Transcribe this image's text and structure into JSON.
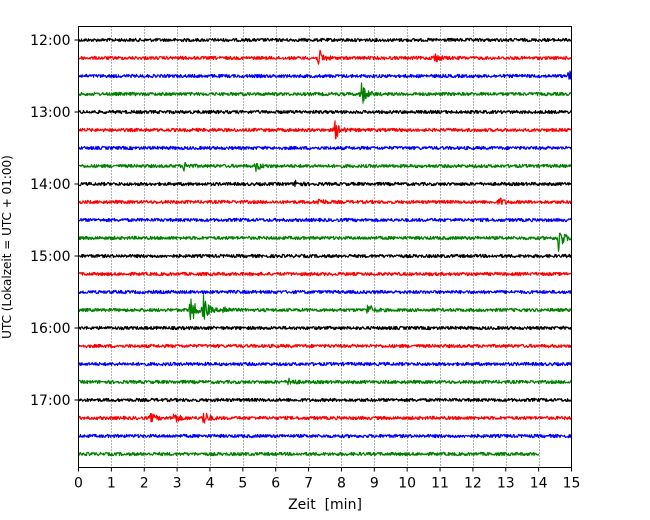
{
  "chart_data": {
    "type": "line",
    "title": "",
    "xlabel": "Zeit  [min]",
    "ylabel": "UTC (Lokalzeit = UTC + 01:00)",
    "xlim": [
      0,
      15
    ],
    "x_ticks": [
      0,
      1,
      2,
      3,
      4,
      5,
      6,
      7,
      8,
      9,
      10,
      11,
      12,
      13,
      14,
      15
    ],
    "y_tick_labels": [
      "12:00",
      "13:00",
      "14:00",
      "15:00",
      "16:00",
      "17:00"
    ],
    "grid": "vertical dotted at each minute",
    "series_colors": [
      "#000000",
      "#ff0000",
      "#0000ff",
      "#008000"
    ],
    "traces": [
      {
        "start": "12:00",
        "color": "#000000",
        "x_end": 15,
        "events": []
      },
      {
        "start": "12:15",
        "color": "#ff0000",
        "x_end": 15,
        "events": [
          {
            "t": 7.3,
            "amp": 1.0
          },
          {
            "t": 10.8,
            "amp": 0.7
          }
        ]
      },
      {
        "start": "12:30",
        "color": "#0000ff",
        "x_end": 15,
        "events": [
          {
            "t": 14.9,
            "amp": 0.6
          }
        ]
      },
      {
        "start": "12:45",
        "color": "#008000",
        "x_end": 15,
        "events": [
          {
            "t": 8.6,
            "amp": 1.5
          }
        ]
      },
      {
        "start": "13:00",
        "color": "#000000",
        "x_end": 15,
        "events": []
      },
      {
        "start": "13:15",
        "color": "#ff0000",
        "x_end": 15,
        "events": [
          {
            "t": 7.8,
            "amp": 1.1
          }
        ]
      },
      {
        "start": "13:30",
        "color": "#0000ff",
        "x_end": 15,
        "events": []
      },
      {
        "start": "13:45",
        "color": "#008000",
        "x_end": 15,
        "events": [
          {
            "t": 3.2,
            "amp": 0.5
          },
          {
            "t": 5.4,
            "amp": 0.5
          }
        ]
      },
      {
        "start": "14:00",
        "color": "#000000",
        "x_end": 15,
        "events": [
          {
            "t": 6.6,
            "amp": 0.4
          }
        ]
      },
      {
        "start": "14:15",
        "color": "#ff0000",
        "x_end": 15,
        "events": [
          {
            "t": 7.3,
            "amp": 0.4
          },
          {
            "t": 12.8,
            "amp": 0.5
          }
        ]
      },
      {
        "start": "14:30",
        "color": "#0000ff",
        "x_end": 15,
        "events": []
      },
      {
        "start": "14:45",
        "color": "#008000",
        "x_end": 15,
        "events": [
          {
            "t": 14.6,
            "amp": 1.6
          }
        ]
      },
      {
        "start": "15:00",
        "color": "#000000",
        "x_end": 15,
        "events": []
      },
      {
        "start": "15:15",
        "color": "#ff0000",
        "x_end": 15,
        "events": []
      },
      {
        "start": "15:30",
        "color": "#0000ff",
        "x_end": 15,
        "events": []
      },
      {
        "start": "15:45",
        "color": "#008000",
        "x_end": 15,
        "events": [
          {
            "t": 3.4,
            "amp": 1.8
          },
          {
            "t": 3.8,
            "amp": 1.5
          },
          {
            "t": 4.4,
            "amp": 0.5
          },
          {
            "t": 8.8,
            "amp": 0.8
          }
        ]
      },
      {
        "start": "16:00",
        "color": "#000000",
        "x_end": 15,
        "events": []
      },
      {
        "start": "16:15",
        "color": "#ff0000",
        "x_end": 15,
        "events": []
      },
      {
        "start": "16:30",
        "color": "#0000ff",
        "x_end": 15,
        "events": []
      },
      {
        "start": "16:45",
        "color": "#008000",
        "x_end": 15,
        "events": [
          {
            "t": 6.4,
            "amp": 0.5
          }
        ]
      },
      {
        "start": "17:00",
        "color": "#000000",
        "x_end": 15,
        "events": []
      },
      {
        "start": "17:15",
        "color": "#ff0000",
        "x_end": 15,
        "events": [
          {
            "t": 2.2,
            "amp": 0.5
          },
          {
            "t": 2.9,
            "amp": 0.7
          },
          {
            "t": 3.8,
            "amp": 0.9
          }
        ]
      },
      {
        "start": "17:30",
        "color": "#0000ff",
        "x_end": 15,
        "events": []
      },
      {
        "start": "17:45",
        "color": "#008000",
        "x_end": 14,
        "events": []
      }
    ]
  }
}
